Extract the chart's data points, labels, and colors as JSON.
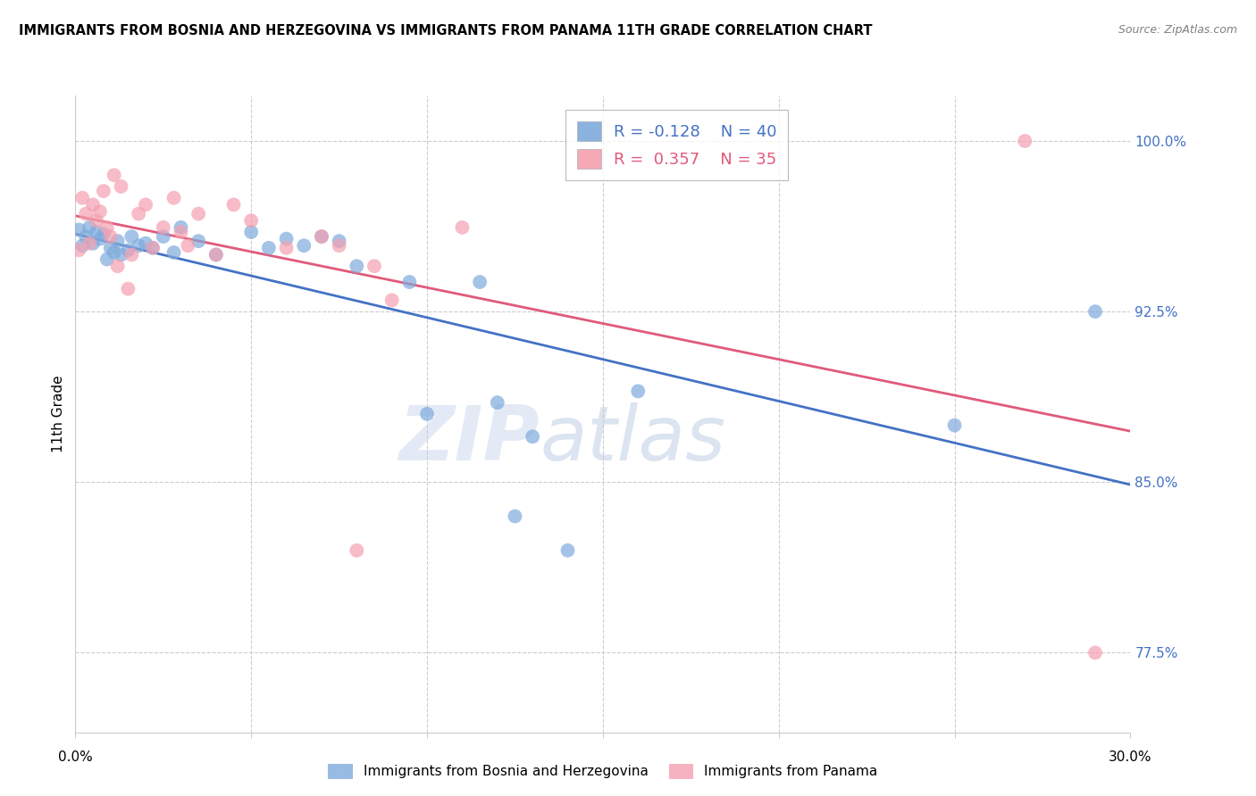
{
  "title": "IMMIGRANTS FROM BOSNIA AND HERZEGOVINA VS IMMIGRANTS FROM PANAMA 11TH GRADE CORRELATION CHART",
  "source": "Source: ZipAtlas.com",
  "ylabel": "11th Grade",
  "yticks": [
    77.5,
    85.0,
    92.5,
    100.0
  ],
  "ytick_labels": [
    "77.5%",
    "85.0%",
    "92.5%",
    "100.0%"
  ],
  "xticks": [
    0.0,
    0.05,
    0.1,
    0.15,
    0.2,
    0.25,
    0.3
  ],
  "xlim": [
    0.0,
    0.3
  ],
  "ylim": [
    74.0,
    102.0
  ],
  "bosnia_color": "#7faadc",
  "panama_color": "#f4a0b0",
  "bosnia_R": -0.128,
  "bosnia_N": 40,
  "panama_R": 0.357,
  "panama_N": 35,
  "legend_label_bosnia": "Immigrants from Bosnia and Herzegovina",
  "legend_label_panama": "Immigrants from Panama",
  "watermark_zip": "ZIP",
  "watermark_atlas": "atlas",
  "bosnia_points": [
    [
      0.001,
      96.1
    ],
    [
      0.002,
      95.4
    ],
    [
      0.003,
      95.8
    ],
    [
      0.004,
      96.2
    ],
    [
      0.005,
      95.5
    ],
    [
      0.006,
      96.0
    ],
    [
      0.007,
      95.7
    ],
    [
      0.008,
      95.9
    ],
    [
      0.009,
      94.8
    ],
    [
      0.01,
      95.3
    ],
    [
      0.011,
      95.1
    ],
    [
      0.012,
      95.6
    ],
    [
      0.013,
      95.0
    ],
    [
      0.015,
      95.2
    ],
    [
      0.016,
      95.8
    ],
    [
      0.018,
      95.4
    ],
    [
      0.02,
      95.5
    ],
    [
      0.022,
      95.3
    ],
    [
      0.025,
      95.8
    ],
    [
      0.028,
      95.1
    ],
    [
      0.03,
      96.2
    ],
    [
      0.035,
      95.6
    ],
    [
      0.04,
      95.0
    ],
    [
      0.05,
      96.0
    ],
    [
      0.055,
      95.3
    ],
    [
      0.06,
      95.7
    ],
    [
      0.065,
      95.4
    ],
    [
      0.07,
      95.8
    ],
    [
      0.075,
      95.6
    ],
    [
      0.08,
      94.5
    ],
    [
      0.095,
      93.8
    ],
    [
      0.1,
      88.0
    ],
    [
      0.115,
      93.8
    ],
    [
      0.12,
      88.5
    ],
    [
      0.125,
      83.5
    ],
    [
      0.13,
      87.0
    ],
    [
      0.14,
      82.0
    ],
    [
      0.16,
      89.0
    ],
    [
      0.25,
      87.5
    ],
    [
      0.29,
      92.5
    ]
  ],
  "panama_points": [
    [
      0.001,
      95.2
    ],
    [
      0.002,
      97.5
    ],
    [
      0.003,
      96.8
    ],
    [
      0.004,
      95.5
    ],
    [
      0.005,
      97.2
    ],
    [
      0.006,
      96.5
    ],
    [
      0.007,
      96.9
    ],
    [
      0.008,
      97.8
    ],
    [
      0.009,
      96.2
    ],
    [
      0.01,
      95.8
    ],
    [
      0.011,
      98.5
    ],
    [
      0.012,
      94.5
    ],
    [
      0.013,
      98.0
    ],
    [
      0.015,
      93.5
    ],
    [
      0.016,
      95.0
    ],
    [
      0.018,
      96.8
    ],
    [
      0.02,
      97.2
    ],
    [
      0.022,
      95.3
    ],
    [
      0.025,
      96.2
    ],
    [
      0.028,
      97.5
    ],
    [
      0.03,
      96.0
    ],
    [
      0.032,
      95.4
    ],
    [
      0.035,
      96.8
    ],
    [
      0.04,
      95.0
    ],
    [
      0.045,
      97.2
    ],
    [
      0.05,
      96.5
    ],
    [
      0.06,
      95.3
    ],
    [
      0.07,
      95.8
    ],
    [
      0.075,
      95.4
    ],
    [
      0.08,
      82.0
    ],
    [
      0.085,
      94.5
    ],
    [
      0.09,
      93.0
    ],
    [
      0.11,
      96.2
    ],
    [
      0.27,
      100.0
    ],
    [
      0.29,
      77.5
    ]
  ]
}
